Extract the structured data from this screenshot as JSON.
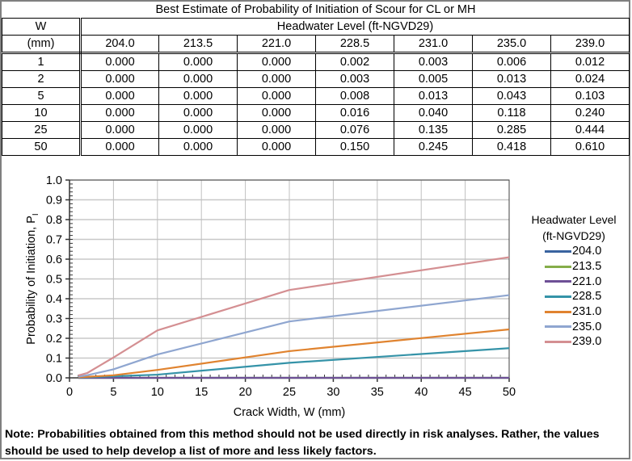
{
  "table": {
    "title": "Best Estimate of Probability of Initiation of Scour for CL or MH",
    "w_header_line1": "W",
    "w_header_line2": "(mm)",
    "group_header": "Headwater Level (ft-NGVD29)",
    "columns": [
      "204.0",
      "213.5",
      "221.0",
      "228.5",
      "231.0",
      "235.0",
      "239.0"
    ],
    "rows": [
      {
        "w": "1",
        "values": [
          "0.000",
          "0.000",
          "0.000",
          "0.002",
          "0.003",
          "0.006",
          "0.012"
        ]
      },
      {
        "w": "2",
        "values": [
          "0.000",
          "0.000",
          "0.000",
          "0.003",
          "0.005",
          "0.013",
          "0.024"
        ]
      },
      {
        "w": "5",
        "values": [
          "0.000",
          "0.000",
          "0.000",
          "0.008",
          "0.013",
          "0.043",
          "0.103"
        ]
      },
      {
        "w": "10",
        "values": [
          "0.000",
          "0.000",
          "0.000",
          "0.016",
          "0.040",
          "0.118",
          "0.240"
        ]
      },
      {
        "w": "25",
        "values": [
          "0.000",
          "0.000",
          "0.000",
          "0.076",
          "0.135",
          "0.285",
          "0.444"
        ]
      },
      {
        "w": "50",
        "values": [
          "0.000",
          "0.000",
          "0.000",
          "0.150",
          "0.245",
          "0.418",
          "0.610"
        ]
      }
    ]
  },
  "chart_data": {
    "type": "line",
    "title": "",
    "xlabel": "Crack Width, W (mm)",
    "ylabel": "Probability of Initiation, P",
    "ylabel_subscript": "I",
    "x": [
      1,
      2,
      5,
      10,
      25,
      50
    ],
    "xlim": [
      0,
      50
    ],
    "ylim": [
      0,
      1.0
    ],
    "xticks": [
      "0",
      "5",
      "10",
      "15",
      "20",
      "25",
      "30",
      "35",
      "40",
      "45",
      "50"
    ],
    "yticks": [
      "0.0",
      "0.1",
      "0.2",
      "0.3",
      "0.4",
      "0.5",
      "0.6",
      "0.7",
      "0.8",
      "0.9",
      "1.0"
    ],
    "grid": true,
    "legend_position": "right",
    "legend_title_line1": "Headwater  Level",
    "legend_title_line2": "(ft-NGVD29)",
    "series": [
      {
        "name": "204.0",
        "color": "#3a64a0",
        "values": [
          0.0,
          0.0,
          0.0,
          0.0,
          0.0,
          0.0
        ]
      },
      {
        "name": "213.5",
        "color": "#85ad4a",
        "values": [
          0.0,
          0.0,
          0.0,
          0.0,
          0.0,
          0.0
        ]
      },
      {
        "name": "221.0",
        "color": "#6e5096",
        "values": [
          0.0,
          0.0,
          0.0,
          0.0,
          0.0,
          0.0
        ]
      },
      {
        "name": "228.5",
        "color": "#3593a8",
        "values": [
          0.002,
          0.003,
          0.008,
          0.016,
          0.076,
          0.15
        ]
      },
      {
        "name": "231.0",
        "color": "#e0832f",
        "values": [
          0.003,
          0.005,
          0.013,
          0.04,
          0.135,
          0.245
        ]
      },
      {
        "name": "235.0",
        "color": "#8fa6d0",
        "values": [
          0.006,
          0.013,
          0.043,
          0.118,
          0.285,
          0.418
        ]
      },
      {
        "name": "239.0",
        "color": "#d48f92",
        "values": [
          0.012,
          0.024,
          0.103,
          0.24,
          0.444,
          0.61
        ]
      }
    ]
  },
  "note": "Note: Probabilities obtained from this method should not be used directly in risk analyses. Rather, the values should be used to help develop a list of more and less likely factors."
}
